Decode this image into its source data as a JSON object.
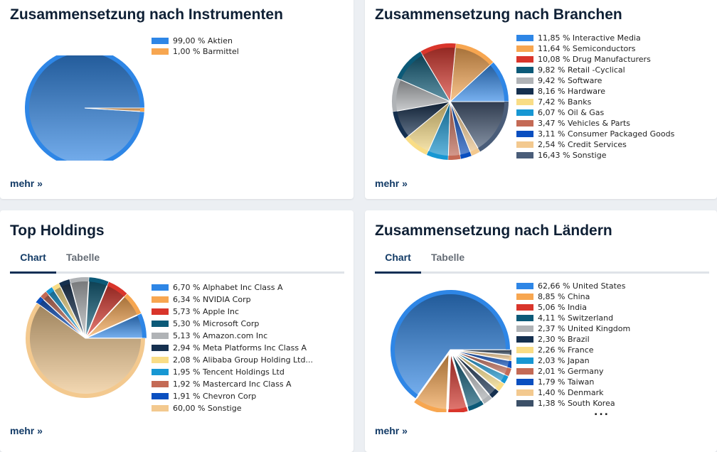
{
  "colors": [
    "#2e86e6",
    "#f7a650",
    "#d9352b",
    "#0c5a78",
    "#b0b3b6",
    "#15304f",
    "#f9dd86",
    "#1797d3",
    "#c46a55",
    "#0a4fc0",
    "#f3c98f",
    "#3c5068"
  ],
  "other_color": "#4a5d79",
  "cards": {
    "instruments": {
      "title": "Zusammensetzung nach Instrumenten",
      "more": "mehr »",
      "chart_data": {
        "type": "pie",
        "slices": [
          {
            "label": "99,00 % Aktien",
            "name": "Aktien",
            "value": 99.0
          },
          {
            "label": "1,00 % Barmittel",
            "name": "Barmittel",
            "value": 1.0
          }
        ]
      }
    },
    "sectors": {
      "title": "Zusammensetzung nach Branchen",
      "more": "mehr »",
      "chart_data": {
        "type": "pie",
        "slices": [
          {
            "label": "11,85 % Interactive Media",
            "name": "Interactive Media",
            "value": 11.85
          },
          {
            "label": "11,64 % Semiconductors",
            "name": "Semiconductors",
            "value": 11.64
          },
          {
            "label": "10,08 % Drug Manufacturers",
            "name": "Drug Manufacturers",
            "value": 10.08
          },
          {
            "label": "9,82 % Retail -Cyclical",
            "name": "Retail -Cyclical",
            "value": 9.82
          },
          {
            "label": "9,42 % Software",
            "name": "Software",
            "value": 9.42
          },
          {
            "label": "8,16 % Hardware",
            "name": "Hardware",
            "value": 8.16
          },
          {
            "label": "7,42 % Banks",
            "name": "Banks",
            "value": 7.42
          },
          {
            "label": "6,07 % Oil & Gas",
            "name": "Oil & Gas",
            "value": 6.07
          },
          {
            "label": "3,47 % Vehicles & Parts",
            "name": "Vehicles & Parts",
            "value": 3.47
          },
          {
            "label": "3,11 % Consumer Packaged Goods",
            "name": "Consumer Packaged Goods",
            "value": 3.11
          },
          {
            "label": "2,54 % Credit Services",
            "name": "Credit Services",
            "value": 2.54
          },
          {
            "label": "16,43 % Sonstige",
            "name": "Sonstige",
            "value": 16.43
          }
        ]
      }
    },
    "holdings": {
      "title": "Top Holdings",
      "tabs": [
        "Chart",
        "Tabelle"
      ],
      "more": "mehr »",
      "chart_data": {
        "type": "pie",
        "slices": [
          {
            "label": "6,70 % Alphabet Inc Class A",
            "name": "Alphabet Inc Class A",
            "value": 6.7
          },
          {
            "label": "6,34 % NVIDIA Corp",
            "name": "NVIDIA Corp",
            "value": 6.34
          },
          {
            "label": "5,73 % Apple Inc",
            "name": "Apple Inc",
            "value": 5.73
          },
          {
            "label": "5,30 % Microsoft Corp",
            "name": "Microsoft Corp",
            "value": 5.3
          },
          {
            "label": "5,13 % Amazon.com Inc",
            "name": "Amazon.com Inc",
            "value": 5.13
          },
          {
            "label": "2,94 % Meta Platforms Inc Class A",
            "name": "Meta Platforms Inc Class A",
            "value": 2.94
          },
          {
            "label": "2,08 % Alibaba Group Holding Ltd...",
            "name": "Alibaba Group Holding Ltd...",
            "value": 2.08
          },
          {
            "label": "1,95 % Tencent Holdings Ltd",
            "name": "Tencent Holdings Ltd",
            "value": 1.95
          },
          {
            "label": "1,92 % Mastercard Inc Class A",
            "name": "Mastercard Inc Class A",
            "value": 1.92
          },
          {
            "label": "1,91 % Chevron Corp",
            "name": "Chevron Corp",
            "value": 1.91
          },
          {
            "label": "60,00 % Sonstige",
            "name": "Sonstige",
            "value": 60.0
          }
        ]
      }
    },
    "countries": {
      "title": "Zusammensetzung nach Ländern",
      "tabs": [
        "Chart",
        "Tabelle"
      ],
      "more": "mehr »",
      "ellipsis": "...",
      "chart_data": {
        "type": "pie",
        "slices": [
          {
            "label": "62,66 % United States",
            "name": "United States",
            "value": 62.66
          },
          {
            "label": "8,85 % China",
            "name": "China",
            "value": 8.85
          },
          {
            "label": "5,06 % India",
            "name": "India",
            "value": 5.06
          },
          {
            "label": "4,11 % Switzerland",
            "name": "Switzerland",
            "value": 4.11
          },
          {
            "label": "2,37 % United Kingdom",
            "name": "United Kingdom",
            "value": 2.37
          },
          {
            "label": "2,30 % Brazil",
            "name": "Brazil",
            "value": 2.3
          },
          {
            "label": "2,26 % France",
            "name": "France",
            "value": 2.26
          },
          {
            "label": "2,03 % Japan",
            "name": "Japan",
            "value": 2.03
          },
          {
            "label": "2,01 % Germany",
            "name": "Germany",
            "value": 2.01
          },
          {
            "label": "1,79 % Taiwan",
            "name": "Taiwan",
            "value": 1.79
          },
          {
            "label": "1,40 % Denmark",
            "name": "Denmark",
            "value": 1.4
          },
          {
            "label": "1,38 % South Korea",
            "name": "South Korea",
            "value": 1.38
          }
        ]
      }
    }
  }
}
